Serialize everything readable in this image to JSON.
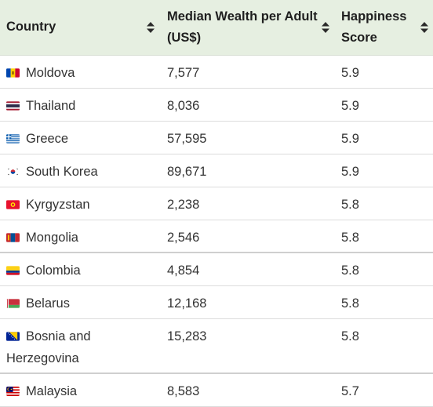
{
  "columns": [
    {
      "label": "Country"
    },
    {
      "label": "Median Wealth per Adult (US$)"
    },
    {
      "label": "Happiness Score"
    }
  ],
  "rows": [
    {
      "country": "Moldova",
      "flag": "moldova-flag-icon",
      "wealth": "7,577",
      "score": "5.9"
    },
    {
      "country": "Thailand",
      "flag": "thailand-flag-icon",
      "wealth": "8,036",
      "score": "5.9"
    },
    {
      "country": "Greece",
      "flag": "greece-flag-icon",
      "wealth": "57,595",
      "score": "5.9"
    },
    {
      "country": "South Korea",
      "flag": "south-korea-flag-icon",
      "wealth": "89,671",
      "score": "5.9"
    },
    {
      "country": "Kyrgyzstan",
      "flag": "kyrgyzstan-flag-icon",
      "wealth": "2,238",
      "score": "5.8"
    },
    {
      "country": "Mongolia",
      "flag": "mongolia-flag-icon",
      "wealth": "2,546",
      "score": "5.8"
    },
    {
      "country": "Colombia",
      "flag": "colombia-flag-icon",
      "wealth": "4,854",
      "score": "5.8"
    },
    {
      "country": "Belarus",
      "flag": "belarus-flag-icon",
      "wealth": "12,168",
      "score": "5.8"
    },
    {
      "country": "Bosnia and Herzegovina",
      "flag": "bosnia-flag-icon",
      "wealth": "15,283",
      "score": "5.8"
    },
    {
      "country": "Malaysia",
      "flag": "malaysia-flag-icon",
      "wealth": "8,583",
      "score": "5.7"
    }
  ],
  "colors": {
    "header_bg": "#e6efe1",
    "row_border": "#dcdcdc",
    "text": "#333333"
  }
}
